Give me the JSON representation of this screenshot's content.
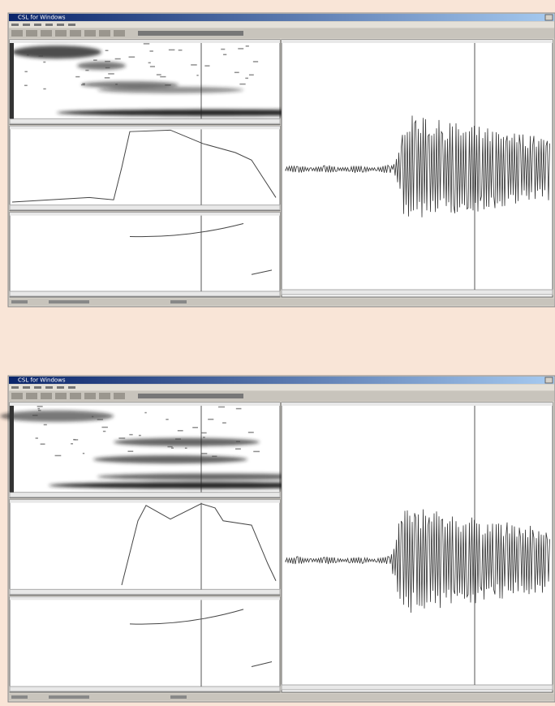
{
  "windows": [
    {
      "title": "CSL for Windows"
    },
    {
      "title": "CSL for Windows"
    }
  ]
}
